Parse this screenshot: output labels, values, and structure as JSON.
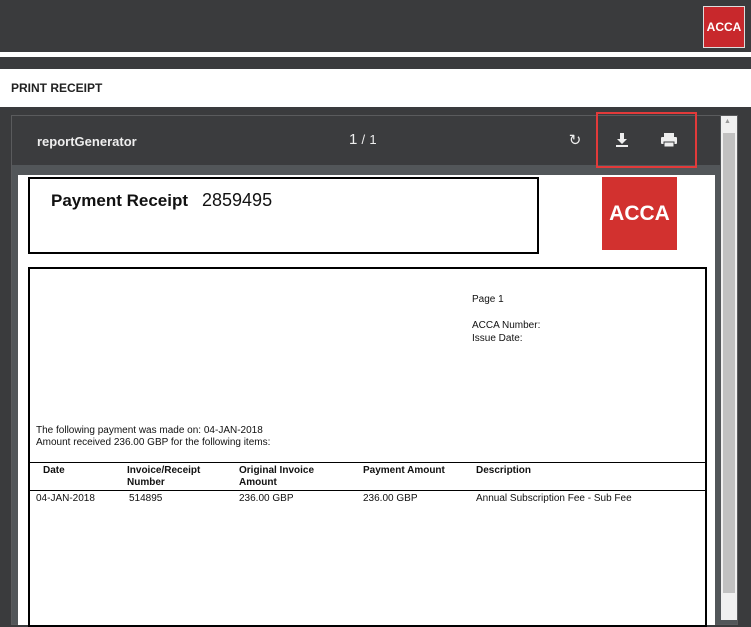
{
  "header": {
    "logo_text": "ACCA",
    "page_title": "PRINT RECEIPT"
  },
  "viewer": {
    "doc_name": "reportGenerator",
    "current_page": "1",
    "total_pages": "1",
    "separator": "/",
    "icons": {
      "rotate": "rotate-icon",
      "download": "download-icon",
      "print": "print-icon"
    }
  },
  "receipt": {
    "title": "Payment Receipt",
    "number": "2859495",
    "logo_text": "ACCA",
    "page_label": "Page 1",
    "acca_number_label": "ACCA Number:",
    "issue_date_label": "Issue Date:",
    "payment_line": "The following payment was made on: 04-JAN-2018",
    "amount_line": "Amount received 236.00 GBP for the following items:",
    "columns": [
      "Date",
      "Invoice/Receipt Number",
      "Original Invoice Amount",
      "Payment Amount",
      "Description"
    ],
    "rows": [
      [
        "04-JAN-2018",
        "514895",
        "236.00 GBP",
        "236.00 GBP",
        "Annual Subscription Fee - Sub Fee"
      ]
    ]
  },
  "colors": {
    "brand_red": "#d2312f",
    "highlight": "#e23a3a",
    "dark": "#3a3b3d"
  }
}
